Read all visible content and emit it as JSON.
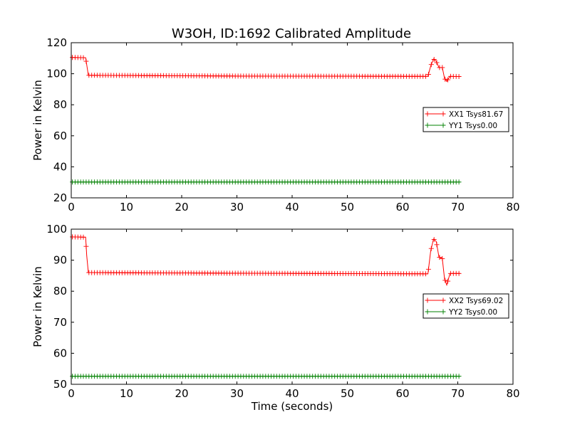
{
  "chart_data": [
    {
      "type": "line",
      "title": "W3OH, ID:1692 Calibrated Amplitude",
      "xlabel": "",
      "ylabel": "Power in Kelvin",
      "xlim": [
        0,
        80
      ],
      "ylim": [
        20,
        120
      ],
      "xticks": [
        0,
        10,
        20,
        30,
        40,
        50,
        60,
        70,
        80
      ],
      "yticks": [
        20,
        40,
        60,
        80,
        100,
        120
      ],
      "legend": "center-right",
      "series": [
        {
          "name": "XX1 Tsys81.67",
          "color": "#ff0000",
          "marker": "plus",
          "points": [
            [
              0.2,
              110.5
            ],
            [
              2.6,
              110.3
            ],
            [
              3.1,
              99.0
            ],
            [
              30,
              98.5
            ],
            [
              64.6,
              98.3
            ],
            [
              65.1,
              105
            ],
            [
              65.6,
              109.5
            ],
            [
              66.1,
              108
            ],
            [
              66.6,
              104
            ],
            [
              67.2,
              104
            ],
            [
              67.6,
              97
            ],
            [
              68.0,
              95
            ],
            [
              68.6,
              98.3
            ],
            [
              70.5,
              98.2
            ]
          ]
        },
        {
          "name": "YY1 Tsys0.00",
          "color": "#008000",
          "marker": "plus",
          "points": [
            [
              0.2,
              30.2
            ],
            [
              70.5,
              30.2
            ]
          ]
        }
      ]
    },
    {
      "type": "line",
      "title": "",
      "xlabel": "Time (seconds)",
      "ylabel": "Power in Kelvin",
      "xlim": [
        0,
        80
      ],
      "ylim": [
        50,
        100
      ],
      "xticks": [
        0,
        10,
        20,
        30,
        40,
        50,
        60,
        70,
        80
      ],
      "yticks": [
        50,
        60,
        70,
        80,
        90,
        100
      ],
      "legend": "center-right",
      "series": [
        {
          "name": "XX2 Tsys69.02",
          "color": "#ff0000",
          "marker": "plus",
          "points": [
            [
              0.2,
              97.5
            ],
            [
              2.6,
              97.4
            ],
            [
              2.8,
              91.5
            ],
            [
              3.1,
              86.0
            ],
            [
              30,
              85.8
            ],
            [
              64.6,
              85.6
            ],
            [
              65.1,
              93
            ],
            [
              65.6,
              96.8
            ],
            [
              66.1,
              96
            ],
            [
              66.6,
              91
            ],
            [
              67.2,
              90.5
            ],
            [
              67.6,
              84
            ],
            [
              68.0,
              82
            ],
            [
              68.6,
              85.7
            ],
            [
              70.5,
              85.7
            ]
          ]
        },
        {
          "name": "YY2 Tsys0.00",
          "color": "#008000",
          "marker": "plus",
          "points": [
            [
              0.2,
              52.6
            ],
            [
              70.5,
              52.6
            ]
          ]
        }
      ]
    }
  ]
}
